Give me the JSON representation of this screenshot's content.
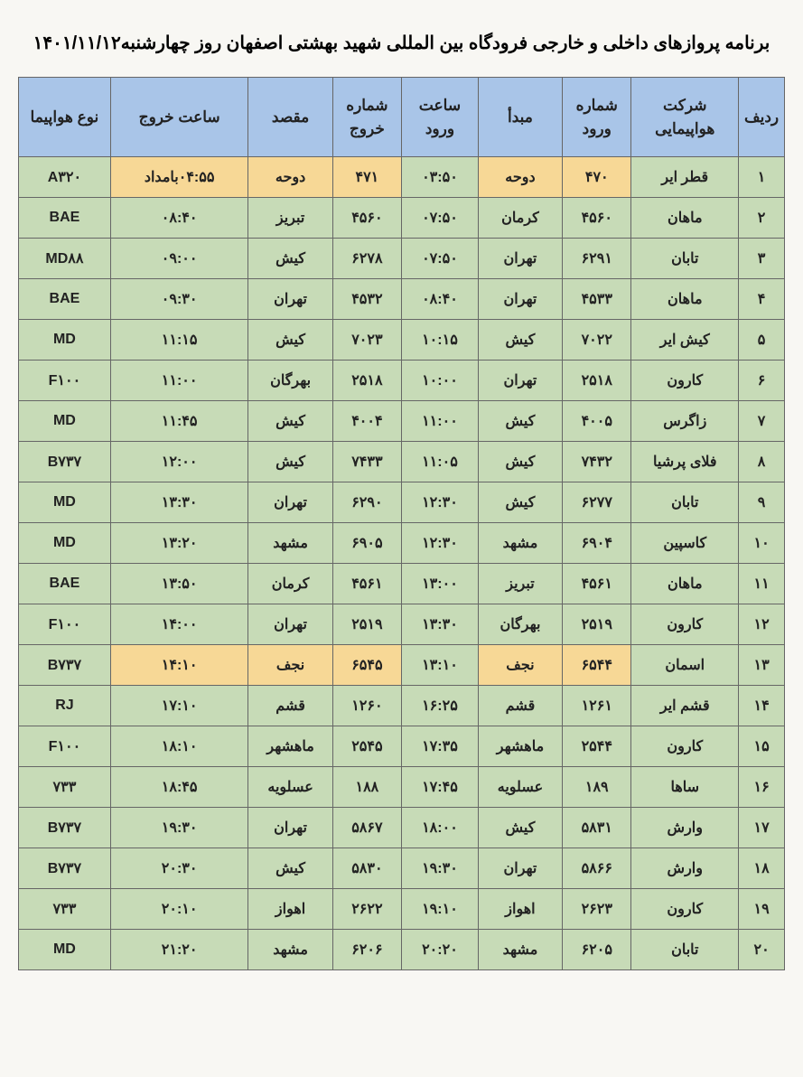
{
  "title": "برنامه پروازهای داخلی و خارجی فرودگاه بین المللی شهید بهشتی اصفهان روز چهارشنبه۱۴۰۱/۱۱/۱۲",
  "colors": {
    "header_bg": "#a9c5e8",
    "body_bg": "#c7dbb7",
    "highlight_bg": "#f7d896",
    "page_bg": "#f8f7f3",
    "border": "#666666",
    "text": "#222222"
  },
  "fonts": {
    "title_size": 20,
    "header_size": 17,
    "cell_size": 16,
    "weight": "bold"
  },
  "columns": [
    {
      "key": "row",
      "label": "ردیف",
      "width": "6%"
    },
    {
      "key": "airline",
      "label": "شرکت هواپیمایی",
      "width": "14%"
    },
    {
      "key": "arrival_no",
      "label": "شماره ورود",
      "width": "9%"
    },
    {
      "key": "origin",
      "label": "مبدأ",
      "width": "11%"
    },
    {
      "key": "arrival_time",
      "label": "ساعت ورود",
      "width": "10%"
    },
    {
      "key": "dep_no",
      "label": "شماره خروج",
      "width": "9%"
    },
    {
      "key": "dest",
      "label": "مقصد",
      "width": "11%"
    },
    {
      "key": "dep_time",
      "label": "ساعت خروج",
      "width": "18%"
    },
    {
      "key": "aircraft",
      "label": "نوع هواپیما",
      "width": "12%"
    }
  ],
  "rows": [
    {
      "row": "۱",
      "airline": "قطر ایر",
      "arrival_no": "۴۷۰",
      "origin": "دوحه",
      "arrival_time": "۰۳:۵۰",
      "dep_no": "۴۷۱",
      "dest": "دوحه",
      "dep_time": "۰۴:۵۵بامداد",
      "aircraft": "A۳۲۰",
      "highlight": [
        "arrival_no",
        "origin",
        "dep_no",
        "dest",
        "dep_time"
      ]
    },
    {
      "row": "۲",
      "airline": "ماهان",
      "arrival_no": "۴۵۶۰",
      "origin": "کرمان",
      "arrival_time": "۰۷:۵۰",
      "dep_no": "۴۵۶۰",
      "dest": "تبریز",
      "dep_time": "۰۸:۴۰",
      "aircraft": "BAE"
    },
    {
      "row": "۳",
      "airline": "تابان",
      "arrival_no": "۶۲۹۱",
      "origin": "تهران",
      "arrival_time": "۰۷:۵۰",
      "dep_no": "۶۲۷۸",
      "dest": "کیش",
      "dep_time": "۰۹:۰۰",
      "aircraft": "MD۸۸"
    },
    {
      "row": "۴",
      "airline": "ماهان",
      "arrival_no": "۴۵۳۳",
      "origin": "تهران",
      "arrival_time": "۰۸:۴۰",
      "dep_no": "۴۵۳۲",
      "dest": "تهران",
      "dep_time": "۰۹:۳۰",
      "aircraft": "BAE"
    },
    {
      "row": "۵",
      "airline": "کیش ایر",
      "arrival_no": "۷۰۲۲",
      "origin": "کیش",
      "arrival_time": "۱۰:۱۵",
      "dep_no": "۷۰۲۳",
      "dest": "کیش",
      "dep_time": "۱۱:۱۵",
      "aircraft": "MD"
    },
    {
      "row": "۶",
      "airline": "کارون",
      "arrival_no": "۲۵۱۸",
      "origin": "تهران",
      "arrival_time": "۱۰:۰۰",
      "dep_no": "۲۵۱۸",
      "dest": "بهرگان",
      "dep_time": "۱۱:۰۰",
      "aircraft": "F۱۰۰"
    },
    {
      "row": "۷",
      "airline": "زاگرس",
      "arrival_no": "۴۰۰۵",
      "origin": "کیش",
      "arrival_time": "۱۱:۰۰",
      "dep_no": "۴۰۰۴",
      "dest": "کیش",
      "dep_time": "۱۱:۴۵",
      "aircraft": "MD"
    },
    {
      "row": "۸",
      "airline": "فلای پرشیا",
      "arrival_no": "۷۴۳۲",
      "origin": "کیش",
      "arrival_time": "۱۱:۰۵",
      "dep_no": "۷۴۳۳",
      "dest": "کیش",
      "dep_time": "۱۲:۰۰",
      "aircraft": "B۷۳۷"
    },
    {
      "row": "۹",
      "airline": "تابان",
      "arrival_no": "۶۲۷۷",
      "origin": "کیش",
      "arrival_time": "۱۲:۳۰",
      "dep_no": "۶۲۹۰",
      "dest": "تهران",
      "dep_time": "۱۳:۳۰",
      "aircraft": "MD"
    },
    {
      "row": "۱۰",
      "airline": "کاسپین",
      "arrival_no": "۶۹۰۴",
      "origin": "مشهد",
      "arrival_time": "۱۲:۳۰",
      "dep_no": "۶۹۰۵",
      "dest": "مشهد",
      "dep_time": "۱۳:۲۰",
      "aircraft": "MD"
    },
    {
      "row": "۱۱",
      "airline": "ماهان",
      "arrival_no": "۴۵۶۱",
      "origin": "تبریز",
      "arrival_time": "۱۳:۰۰",
      "dep_no": "۴۵۶۱",
      "dest": "کرمان",
      "dep_time": "۱۳:۵۰",
      "aircraft": "BAE"
    },
    {
      "row": "۱۲",
      "airline": "کارون",
      "arrival_no": "۲۵۱۹",
      "origin": "بهرگان",
      "arrival_time": "۱۳:۳۰",
      "dep_no": "۲۵۱۹",
      "dest": "تهران",
      "dep_time": "۱۴:۰۰",
      "aircraft": "F۱۰۰"
    },
    {
      "row": "۱۳",
      "airline": "اسمان",
      "arrival_no": "۶۵۴۴",
      "origin": "نجف",
      "arrival_time": "۱۳:۱۰",
      "dep_no": "۶۵۴۵",
      "dest": "نجف",
      "dep_time": "۱۴:۱۰",
      "aircraft": "B۷۳۷",
      "highlight": [
        "arrival_no",
        "origin",
        "dep_no",
        "dest",
        "dep_time"
      ]
    },
    {
      "row": "۱۴",
      "airline": "قشم ایر",
      "arrival_no": "۱۲۶۱",
      "origin": "قشم",
      "arrival_time": "۱۶:۲۵",
      "dep_no": "۱۲۶۰",
      "dest": "قشم",
      "dep_time": "۱۷:۱۰",
      "aircraft": "RJ"
    },
    {
      "row": "۱۵",
      "airline": "کارون",
      "arrival_no": "۲۵۴۴",
      "origin": "ماهشهر",
      "arrival_time": "۱۷:۳۵",
      "dep_no": "۲۵۴۵",
      "dest": "ماهشهر",
      "dep_time": "۱۸:۱۰",
      "aircraft": "F۱۰۰"
    },
    {
      "row": "۱۶",
      "airline": "ساها",
      "arrival_no": "۱۸۹",
      "origin": "عسلویه",
      "arrival_time": "۱۷:۴۵",
      "dep_no": "۱۸۸",
      "dest": "عسلویه",
      "dep_time": "۱۸:۴۵",
      "aircraft": "۷۳۳"
    },
    {
      "row": "۱۷",
      "airline": "وارش",
      "arrival_no": "۵۸۳۱",
      "origin": "کیش",
      "arrival_time": "۱۸:۰۰",
      "dep_no": "۵۸۶۷",
      "dest": "تهران",
      "dep_time": "۱۹:۳۰",
      "aircraft": "B۷۳۷"
    },
    {
      "row": "۱۸",
      "airline": "وارش",
      "arrival_no": "۵۸۶۶",
      "origin": "تهران",
      "arrival_time": "۱۹:۳۰",
      "dep_no": "۵۸۳۰",
      "dest": "کیش",
      "dep_time": "۲۰:۳۰",
      "aircraft": "B۷۳۷"
    },
    {
      "row": "۱۹",
      "airline": "کارون",
      "arrival_no": "۲۶۲۳",
      "origin": "اهواز",
      "arrival_time": "۱۹:۱۰",
      "dep_no": "۲۶۲۲",
      "dest": "اهواز",
      "dep_time": "۲۰:۱۰",
      "aircraft": "۷۳۳"
    },
    {
      "row": "۲۰",
      "airline": "تابان",
      "arrival_no": "۶۲۰۵",
      "origin": "مشهد",
      "arrival_time": "۲۰:۲۰",
      "dep_no": "۶۲۰۶",
      "dest": "مشهد",
      "dep_time": "۲۱:۲۰",
      "aircraft": "MD"
    }
  ]
}
